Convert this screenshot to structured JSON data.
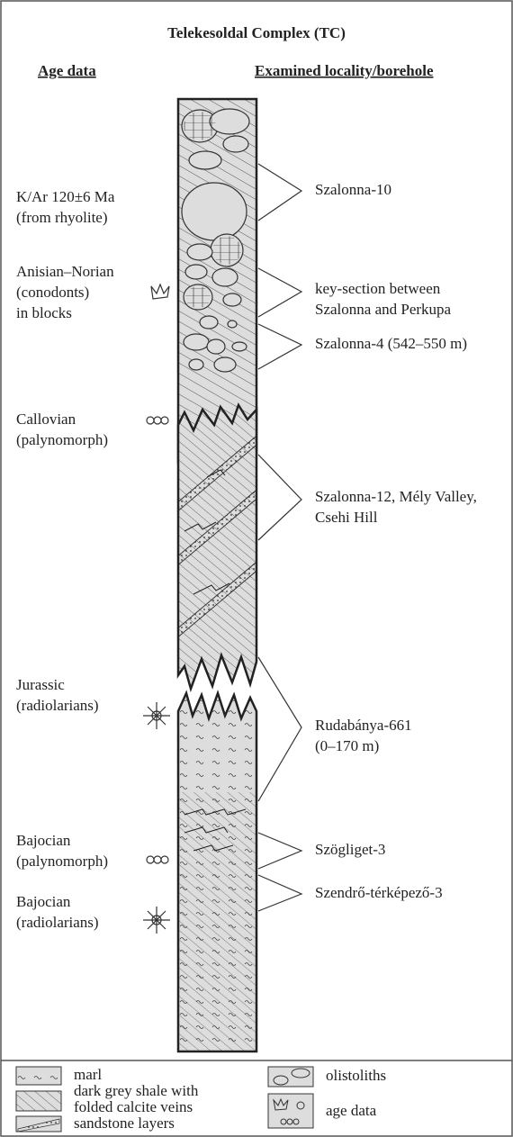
{
  "title": "Telekesoldal Complex (TC)",
  "headers": {
    "age_data": "Age data",
    "locality": "Examined locality/borehole"
  },
  "age_data": [
    {
      "lines": [
        "K/Ar 120±6 Ma",
        "(from rhyolite)"
      ]
    },
    {
      "lines": [
        "Anisian–Norian",
        "(conodonts)",
        "in blocks"
      ]
    },
    {
      "lines": [
        "Callovian",
        "(palynomorph)"
      ]
    },
    {
      "lines": [
        "Jurassic",
        "(radiolarians)"
      ]
    },
    {
      "lines": [
        "Bajocian",
        "(palynomorph)"
      ]
    },
    {
      "lines": [
        "Bajocian",
        "(radiolarians)"
      ]
    }
  ],
  "localities": [
    {
      "lines": [
        "Szalonna-10"
      ]
    },
    {
      "lines": [
        "key-section between",
        "Szalonna and Perkupa"
      ]
    },
    {
      "lines": [
        "Szalonna-4 (542–550 m)"
      ]
    },
    {
      "lines": [
        "Szalonna-12, Mély Valley,",
        "Csehi Hill"
      ]
    },
    {
      "lines": [
        "Rudabánya-661",
        "(0–170 m)"
      ]
    },
    {
      "lines": [
        "Szögliget-3"
      ]
    },
    {
      "lines": [
        "Szendrő-térképező-3"
      ]
    }
  ],
  "legend": [
    {
      "lines": [
        "marl"
      ]
    },
    {
      "lines": [
        "dark grey shale with",
        "folded calcite veins"
      ]
    },
    {
      "lines": [
        "sandstone layers"
      ]
    },
    {
      "lines": [
        "olistoliths"
      ]
    },
    {
      "lines": [
        "age data"
      ]
    }
  ]
}
